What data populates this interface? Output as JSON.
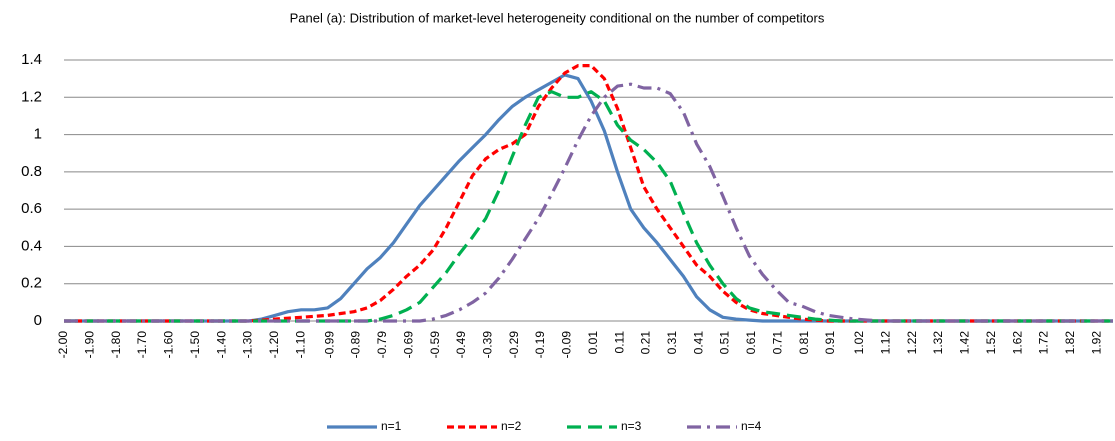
{
  "chart_data": {
    "type": "line",
    "title": "Panel (a): Distribution of market-level heterogeneity conditional on the number of competitors",
    "x": [
      -2.0,
      -1.6,
      -1.3,
      -1.25,
      -1.2,
      -1.15,
      -1.1,
      -1.05,
      -1.0,
      -0.95,
      -0.9,
      -0.85,
      -0.8,
      -0.75,
      -0.7,
      -0.65,
      -0.6,
      -0.55,
      -0.5,
      -0.45,
      -0.4,
      -0.35,
      -0.3,
      -0.25,
      -0.2,
      -0.15,
      -0.1,
      -0.05,
      0,
      0.05,
      0.1,
      0.15,
      0.2,
      0.25,
      0.3,
      0.35,
      0.4,
      0.45,
      0.5,
      0.55,
      0.6,
      0.65,
      0.7,
      0.75,
      0.8,
      0.85,
      0.9,
      0.95,
      1.0,
      1.05,
      1.1,
      1.3,
      1.6,
      1.98
    ],
    "series": [
      {
        "name": "n=1",
        "color": "#4f81bd",
        "style": "solid",
        "values": [
          0,
          0,
          0,
          0.01,
          0.03,
          0.05,
          0.06,
          0.06,
          0.07,
          0.12,
          0.2,
          0.28,
          0.34,
          0.42,
          0.52,
          0.62,
          0.7,
          0.78,
          0.86,
          0.93,
          1.0,
          1.08,
          1.15,
          1.2,
          1.24,
          1.28,
          1.32,
          1.3,
          1.18,
          1.02,
          0.8,
          0.6,
          0.5,
          0.42,
          0.33,
          0.24,
          0.13,
          0.06,
          0.02,
          0.01,
          0.005,
          0,
          0,
          0,
          0,
          0,
          0,
          0,
          0,
          0,
          0,
          0,
          0,
          0
        ]
      },
      {
        "name": "n=2",
        "color": "#ff0000",
        "style": "dash",
        "values": [
          0,
          0,
          0,
          0.005,
          0.01,
          0.015,
          0.02,
          0.025,
          0.03,
          0.04,
          0.05,
          0.07,
          0.11,
          0.17,
          0.24,
          0.3,
          0.38,
          0.5,
          0.64,
          0.78,
          0.87,
          0.92,
          0.95,
          1.0,
          1.15,
          1.25,
          1.33,
          1.37,
          1.37,
          1.3,
          1.14,
          0.93,
          0.72,
          0.6,
          0.5,
          0.4,
          0.3,
          0.24,
          0.16,
          0.1,
          0.06,
          0.04,
          0.03,
          0.02,
          0.01,
          0.005,
          0,
          0,
          0,
          0,
          0,
          0,
          0,
          0
        ]
      },
      {
        "name": "n=3",
        "color": "#00b050",
        "style": "long-dash",
        "values": [
          0,
          0,
          0,
          0,
          0,
          0,
          0,
          0,
          0,
          0,
          0,
          0,
          0.01,
          0.03,
          0.06,
          0.1,
          0.18,
          0.26,
          0.36,
          0.45,
          0.55,
          0.7,
          0.88,
          1.05,
          1.2,
          1.23,
          1.2,
          1.2,
          1.23,
          1.18,
          1.05,
          0.97,
          0.92,
          0.85,
          0.75,
          0.58,
          0.42,
          0.3,
          0.2,
          0.12,
          0.07,
          0.05,
          0.04,
          0.03,
          0.02,
          0.01,
          0.005,
          0,
          0,
          0,
          0,
          0,
          0,
          0
        ]
      },
      {
        "name": "n=4",
        "color": "#8064a2",
        "style": "dash-dot",
        "values": [
          0,
          0,
          0,
          0,
          0,
          0,
          0,
          0,
          0,
          0,
          0,
          0,
          0,
          0,
          0,
          0,
          0.01,
          0.03,
          0.06,
          0.1,
          0.15,
          0.23,
          0.33,
          0.44,
          0.55,
          0.68,
          0.82,
          0.97,
          1.1,
          1.2,
          1.26,
          1.27,
          1.25,
          1.25,
          1.22,
          1.12,
          0.95,
          0.83,
          0.67,
          0.5,
          0.35,
          0.25,
          0.17,
          0.1,
          0.08,
          0.05,
          0.03,
          0.02,
          0.01,
          0.005,
          0,
          0,
          0,
          0
        ]
      }
    ],
    "xlim": [
      -2.0,
      1.98
    ],
    "xticks": [
      {
        "value": -2.0,
        "label": "-2.00"
      },
      {
        "value": -1.9,
        "label": "-1.90"
      },
      {
        "value": -1.8,
        "label": "-1.80"
      },
      {
        "value": -1.7,
        "label": "-1.70"
      },
      {
        "value": -1.6,
        "label": "-1.60"
      },
      {
        "value": -1.5,
        "label": "-1.50"
      },
      {
        "value": -1.4,
        "label": "-1.40"
      },
      {
        "value": -1.3,
        "label": "-1.30"
      },
      {
        "value": -1.2,
        "label": "-1.20"
      },
      {
        "value": -1.1,
        "label": "-1.10"
      },
      -0.99,
      -0.89,
      -0.79,
      -0.69,
      -0.59,
      -0.49,
      -0.39,
      -0.29,
      -0.19,
      -0.09,
      0.01,
      0.11,
      0.21,
      0.31,
      0.41,
      0.51,
      0.61,
      0.71,
      0.81,
      0.91,
      1.02,
      1.12,
      1.22,
      1.32,
      1.42,
      1.52,
      1.62,
      1.72,
      1.82,
      1.92
    ],
    "ylim": [
      0,
      1.4
    ],
    "yticks": [
      0,
      0.2,
      0.4,
      0.6,
      0.8,
      1,
      1.2,
      1.4
    ],
    "grid": true,
    "legend": "bottom"
  }
}
